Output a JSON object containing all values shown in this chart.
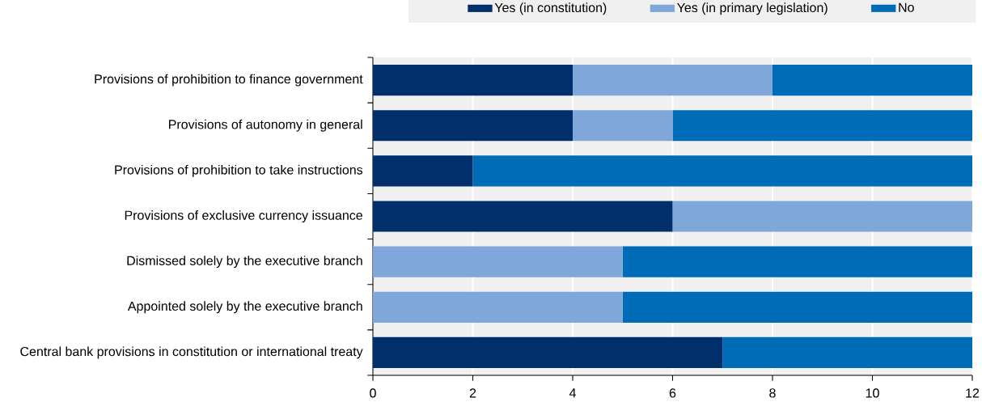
{
  "chart_data": {
    "type": "bar",
    "orientation": "horizontal",
    "stacked": true,
    "categories": [
      "Provisions of prohibition to finance government",
      "Provisions of autonomy in general",
      "Provisions of prohibition to take instructions",
      "Provisions of exclusive currency issuance",
      "Dismissed solely by the executive branch",
      "Appointed solely by the executive branch",
      "Central bank provisions in constitution or international treaty"
    ],
    "series": [
      {
        "name": "Yes (in constitution)",
        "color": "#002f6c",
        "values": [
          4,
          4,
          2,
          6,
          0,
          0,
          7
        ]
      },
      {
        "name": "Yes (in primary legislation)",
        "color": "#7fa7d9",
        "values": [
          4,
          2,
          0,
          6,
          5,
          5,
          0
        ]
      },
      {
        "name": "No",
        "color": "#006bb6",
        "values": [
          4,
          6,
          10,
          0,
          7,
          7,
          5
        ]
      }
    ],
    "xlim": [
      0,
      12
    ],
    "xticks": [
      0,
      2,
      4,
      6,
      8,
      10,
      12
    ],
    "grid": "x",
    "legend": "top"
  }
}
